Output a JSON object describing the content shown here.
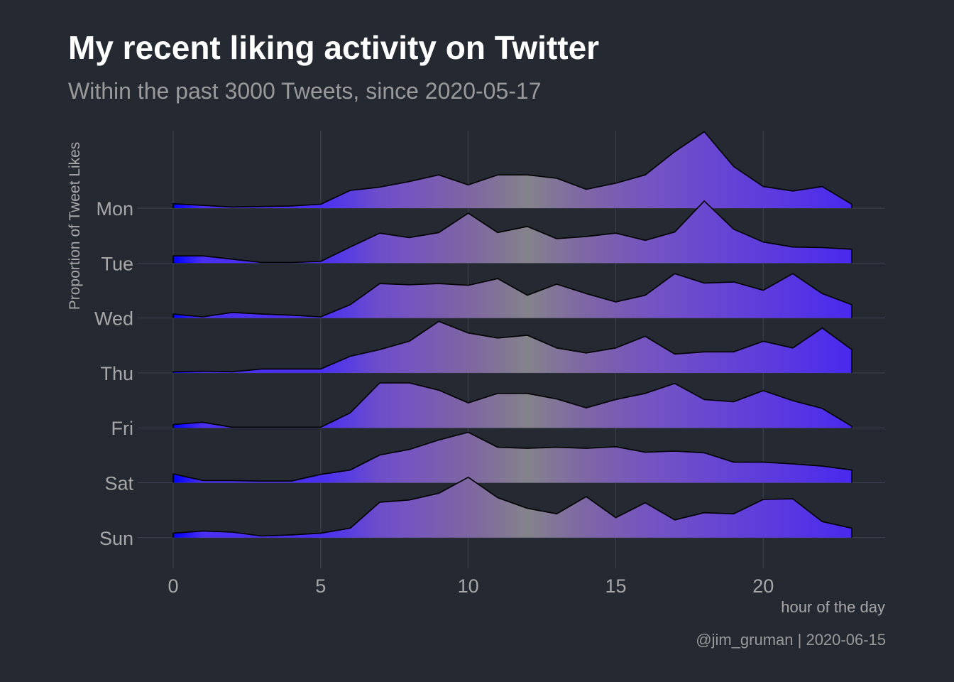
{
  "chart_data": {
    "type": "area",
    "title": "My recent liking activity on Twitter",
    "subtitle": "Within the past 3000 Tweets, since 2020-05-17",
    "xlabel": "hour of the day",
    "ylabel": "Proportion of Tweet Likes",
    "caption": "@jim_gruman | 2020-06-15",
    "x": [
      0,
      1,
      2,
      3,
      4,
      5,
      6,
      7,
      8,
      9,
      10,
      11,
      12,
      13,
      14,
      15,
      16,
      17,
      18,
      19,
      20,
      21,
      22,
      23
    ],
    "xlim": [
      0,
      23
    ],
    "xticks": [
      0,
      5,
      10,
      15,
      20
    ],
    "categories": [
      "Mon",
      "Tue",
      "Wed",
      "Thu",
      "Fri",
      "Sat",
      "Sun"
    ],
    "series": [
      {
        "name": "Mon",
        "values": [
          0.008,
          0.005,
          0.002,
          0.003,
          0.004,
          0.007,
          0.032,
          0.038,
          0.048,
          0.06,
          0.042,
          0.06,
          0.06,
          0.054,
          0.034,
          0.045,
          0.06,
          0.102,
          0.138,
          0.075,
          0.039,
          0.031,
          0.039,
          0.007
        ]
      },
      {
        "name": "Tue",
        "values": [
          0.013,
          0.013,
          0.007,
          0.001,
          0.001,
          0.003,
          0.029,
          0.054,
          0.046,
          0.055,
          0.09,
          0.055,
          0.066,
          0.044,
          0.048,
          0.054,
          0.041,
          0.056,
          0.112,
          0.061,
          0.038,
          0.029,
          0.028,
          0.025
        ]
      },
      {
        "name": "Wed",
        "values": [
          0.007,
          0.002,
          0.01,
          0.007,
          0.005,
          0.002,
          0.024,
          0.062,
          0.06,
          0.062,
          0.059,
          0.071,
          0.041,
          0.061,
          0.044,
          0.029,
          0.041,
          0.08,
          0.063,
          0.065,
          0.05,
          0.08,
          0.044,
          0.024
        ]
      },
      {
        "name": "Thu",
        "values": [
          0.002,
          0.003,
          0.002,
          0.007,
          0.007,
          0.007,
          0.03,
          0.042,
          0.057,
          0.093,
          0.072,
          0.063,
          0.068,
          0.045,
          0.036,
          0.045,
          0.066,
          0.034,
          0.038,
          0.038,
          0.057,
          0.045,
          0.081,
          0.042
        ]
      },
      {
        "name": "Fri",
        "values": [
          0.006,
          0.01,
          0.001,
          0.001,
          0.001,
          0.001,
          0.027,
          0.081,
          0.081,
          0.068,
          0.045,
          0.062,
          0.062,
          0.052,
          0.036,
          0.051,
          0.062,
          0.08,
          0.051,
          0.047,
          0.067,
          0.049,
          0.035,
          0.003
        ]
      },
      {
        "name": "Sat",
        "values": [
          0.016,
          0.004,
          0.004,
          0.003,
          0.003,
          0.015,
          0.023,
          0.05,
          0.06,
          0.077,
          0.091,
          0.064,
          0.062,
          0.064,
          0.062,
          0.065,
          0.055,
          0.057,
          0.054,
          0.037,
          0.037,
          0.034,
          0.03,
          0.023
        ]
      },
      {
        "name": "Sun",
        "values": [
          0.008,
          0.012,
          0.01,
          0.003,
          0.005,
          0.008,
          0.017,
          0.064,
          0.068,
          0.08,
          0.109,
          0.072,
          0.053,
          0.043,
          0.074,
          0.036,
          0.063,
          0.032,
          0.045,
          0.043,
          0.069,
          0.07,
          0.029,
          0.017
        ]
      }
    ],
    "fill_gradient_by_hour": [
      "#0000ff",
      "#4a2ff0",
      "#4a2ff0",
      "#4a2ff0",
      "#4a2ff0",
      "#4a2ff0",
      "#5a3ee0",
      "#6e4ec8",
      "#7655c0",
      "#7a5db0",
      "#7e66a2",
      "#827398",
      "#84838a",
      "#82749a",
      "#7e66a6",
      "#7a5db2",
      "#7555c0",
      "#7050c8",
      "#6a48d0",
      "#6442d6",
      "#5e3cdc",
      "#5836e2",
      "#5030e8",
      "#4a28ee"
    ],
    "colors": {
      "background": "#252932",
      "grid": "#3d4350",
      "line": "#000000"
    },
    "grid": true,
    "legend": "none"
  }
}
